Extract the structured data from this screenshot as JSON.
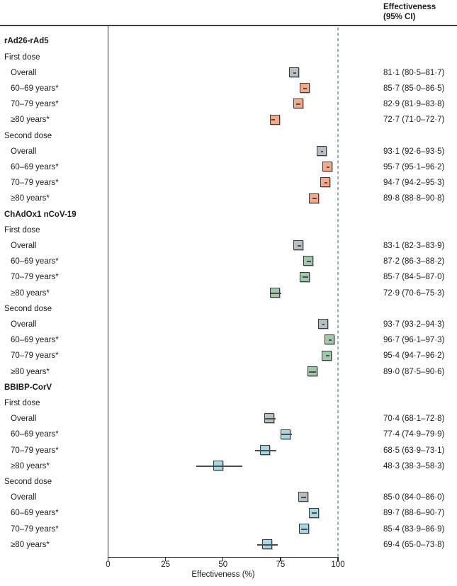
{
  "header": {
    "effectiveness_line1": "Effectiveness",
    "effectiveness_line2": "(95% CI)"
  },
  "axis": {
    "label": "Effectiveness (%)",
    "tick_labels": [
      "0",
      "25",
      "50",
      "75",
      "100"
    ],
    "tick_values": [
      0,
      25,
      50,
      75,
      100
    ]
  },
  "colors": {
    "overall_box": "#b6bfc4",
    "rad26_box": "#f6a98a",
    "chadox_box": "#a0c9ac",
    "bbibp_box": "#a7d7e3",
    "box_border": "#3b3b3b",
    "ci_line": "#4d4d4d",
    "reference_line": "#96acb4",
    "rule": "#3f3f3f",
    "text": "#1c1c1c"
  },
  "chart_data": {
    "type": "forest",
    "xlabel": "Effectiveness (%)",
    "xlim": [
      0,
      100
    ],
    "xticks": [
      0,
      25,
      50,
      75,
      100
    ],
    "reference_line": 100,
    "right_column_header": "Effectiveness (95% CI)",
    "groups": [
      {
        "name": "rAd26-rAd5",
        "color_key": "rad26_box",
        "doses": [
          {
            "name": "First dose",
            "rows": [
              {
                "label": "Overall",
                "overall": true,
                "estimate": 81.1,
                "ci_low": 80.5,
                "ci_high": 81.7,
                "text": "81·1 (80·5–81·7)"
              },
              {
                "label": "60–69 years*",
                "overall": false,
                "estimate": 85.7,
                "ci_low": 85.0,
                "ci_high": 86.5,
                "text": "85·7 (85·0–86·5)"
              },
              {
                "label": "70–79 years*",
                "overall": false,
                "estimate": 82.9,
                "ci_low": 81.9,
                "ci_high": 83.8,
                "text": "82·9 (81·9–83·8)"
              },
              {
                "label": "≥80 years*",
                "overall": false,
                "estimate": 72.7,
                "ci_low": 71.0,
                "ci_high": 72.7,
                "text": "72·7 (71·0–72·7)"
              }
            ]
          },
          {
            "name": "Second dose",
            "rows": [
              {
                "label": "Overall",
                "overall": true,
                "estimate": 93.1,
                "ci_low": 92.6,
                "ci_high": 93.5,
                "text": "93·1 (92·6–93·5)"
              },
              {
                "label": "60–69 years*",
                "overall": false,
                "estimate": 95.7,
                "ci_low": 95.1,
                "ci_high": 96.2,
                "text": "95·7 (95·1–96·2)"
              },
              {
                "label": "70–79 years*",
                "overall": false,
                "estimate": 94.7,
                "ci_low": 94.2,
                "ci_high": 95.3,
                "text": "94·7 (94·2–95·3)"
              },
              {
                "label": "≥80 years*",
                "overall": false,
                "estimate": 89.8,
                "ci_low": 88.8,
                "ci_high": 90.8,
                "text": "89·8 (88·8–90·8)"
              }
            ]
          }
        ]
      },
      {
        "name": "ChAdOx1 nCoV-19",
        "color_key": "chadox_box",
        "doses": [
          {
            "name": "First dose",
            "rows": [
              {
                "label": "Overall",
                "overall": true,
                "estimate": 83.1,
                "ci_low": 82.3,
                "ci_high": 83.9,
                "text": "83·1 (82·3–83·9)"
              },
              {
                "label": "60–69 years*",
                "overall": false,
                "estimate": 87.2,
                "ci_low": 86.3,
                "ci_high": 88.2,
                "text": "87·2 (86·3–88·2)"
              },
              {
                "label": "70–79 years*",
                "overall": false,
                "estimate": 85.7,
                "ci_low": 84.5,
                "ci_high": 87.0,
                "text": "85·7 (84·5–87·0)"
              },
              {
                "label": "≥80 years*",
                "overall": false,
                "estimate": 72.9,
                "ci_low": 70.6,
                "ci_high": 75.3,
                "text": "72·9 (70·6–75·3)"
              }
            ]
          },
          {
            "name": "Second dose",
            "rows": [
              {
                "label": "Overall",
                "overall": true,
                "estimate": 93.7,
                "ci_low": 93.2,
                "ci_high": 94.3,
                "text": "93·7 (93·2–94·3)"
              },
              {
                "label": "60–69 years*",
                "overall": false,
                "estimate": 96.7,
                "ci_low": 96.1,
                "ci_high": 97.3,
                "text": "96·7 (96·1–97·3)"
              },
              {
                "label": "70–79 years*",
                "overall": false,
                "estimate": 95.4,
                "ci_low": 94.7,
                "ci_high": 96.2,
                "text": "95·4 (94·7–96·2)"
              },
              {
                "label": "≥80 years*",
                "overall": false,
                "estimate": 89.0,
                "ci_low": 87.5,
                "ci_high": 90.6,
                "text": "89·0 (87·5–90·6)"
              }
            ]
          }
        ]
      },
      {
        "name": "BBIBP-CorV",
        "color_key": "bbibp_box",
        "doses": [
          {
            "name": "First dose",
            "rows": [
              {
                "label": "Overall",
                "overall": true,
                "estimate": 70.4,
                "ci_low": 68.1,
                "ci_high": 72.8,
                "text": "70·4 (68·1–72·8)"
              },
              {
                "label": "60–69 years*",
                "overall": false,
                "estimate": 77.4,
                "ci_low": 74.9,
                "ci_high": 79.9,
                "text": "77·4 (74·9–79·9)"
              },
              {
                "label": "70–79 years*",
                "overall": false,
                "estimate": 68.5,
                "ci_low": 63.9,
                "ci_high": 73.1,
                "text": "68·5 (63·9–73·1)"
              },
              {
                "label": "≥80 years*",
                "overall": false,
                "estimate": 48.3,
                "ci_low": 38.3,
                "ci_high": 58.3,
                "text": "48·3 (38·3–58·3)"
              }
            ]
          },
          {
            "name": "Second dose",
            "rows": [
              {
                "label": "Overall",
                "overall": true,
                "estimate": 85.0,
                "ci_low": 84.0,
                "ci_high": 86.0,
                "text": "85·0 (84·0–86·0)"
              },
              {
                "label": "60–69 years*",
                "overall": false,
                "estimate": 89.7,
                "ci_low": 88.6,
                "ci_high": 90.7,
                "text": "89·7 (88·6–90·7)"
              },
              {
                "label": "70–79 years*",
                "overall": false,
                "estimate": 85.4,
                "ci_low": 83.9,
                "ci_high": 86.9,
                "text": "85·4 (83·9–86·9)"
              },
              {
                "label": "≥80 years*",
                "overall": false,
                "estimate": 69.4,
                "ci_low": 65.0,
                "ci_high": 73.8,
                "text": "69·4 (65·0–73·8)"
              }
            ]
          }
        ]
      }
    ]
  }
}
